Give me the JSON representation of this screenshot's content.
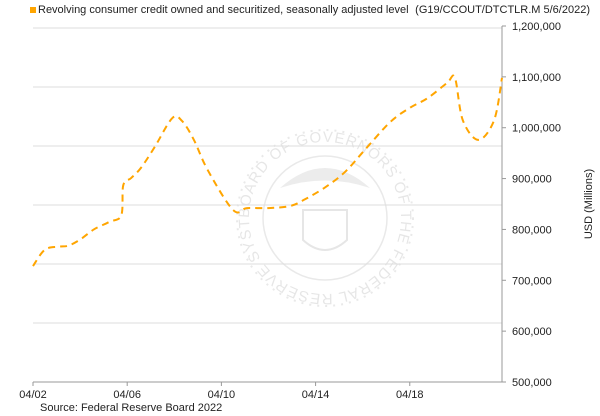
{
  "legend": {
    "label": "Revolving consumer credit owned and securitized, seasonally adjusted level",
    "color": "#ffa500"
  },
  "series_id": "(G19/CCOUT/DTCTLR.M 5/6/2022)",
  "source": "Source: Federal Reserve Board 2022",
  "watermark": "BOARD OF GOVERNORS OF THE FEDERAL RESERVE SYSTEM",
  "chart_data": {
    "type": "line",
    "title": "",
    "ylabel": "USD (Millions)",
    "xlabel": "",
    "ylim": [
      500000,
      1200000
    ],
    "yticks": [
      "500,000",
      "600,000",
      "700,000",
      "800,000",
      "900,000",
      "1,000,000",
      "1,100,000",
      "1,200,000"
    ],
    "xticks": [
      {
        "label": "04/02",
        "x": "2002-04"
      },
      {
        "label": "04/06",
        "x": "2006-04"
      },
      {
        "label": "04/10",
        "x": "2010-04"
      },
      {
        "label": "04/14",
        "x": "2014-04"
      },
      {
        "label": "04/18",
        "x": "2018-04"
      }
    ],
    "xlim": [
      "2002-04",
      "2022-03"
    ],
    "grid": true,
    "line_style": "dashed",
    "series": [
      {
        "color": "#ffa500",
        "x": [
          "2002-04",
          "2002-10",
          "2003-05",
          "2003-10",
          "2004-04",
          "2004-11",
          "2005-07",
          "2006-01",
          "2006-02",
          "2006-06",
          "2006-11",
          "2007-06",
          "2008-03",
          "2008-08",
          "2009-02",
          "2009-09",
          "2010-10",
          "2011-05",
          "2012-04",
          "2013-03",
          "2013-10",
          "2014-09",
          "2015-07",
          "2016-05",
          "2017-06",
          "2018-04",
          "2019-01",
          "2019-11",
          "2020-03",
          "2020-07",
          "2021-03",
          "2021-11",
          "2022-03"
        ],
        "values": [
          728000,
          760000,
          766000,
          768000,
          780000,
          800000,
          815000,
          828000,
          887000,
          901000,
          921000,
          962000,
          1019000,
          1013000,
          976000,
          917000,
          838000,
          842000,
          842000,
          846000,
          858000,
          883000,
          913000,
          956000,
          1011000,
          1039000,
          1058000,
          1088000,
          1098000,
          1015000,
          976000,
          1015000,
          1098000
        ]
      }
    ]
  }
}
